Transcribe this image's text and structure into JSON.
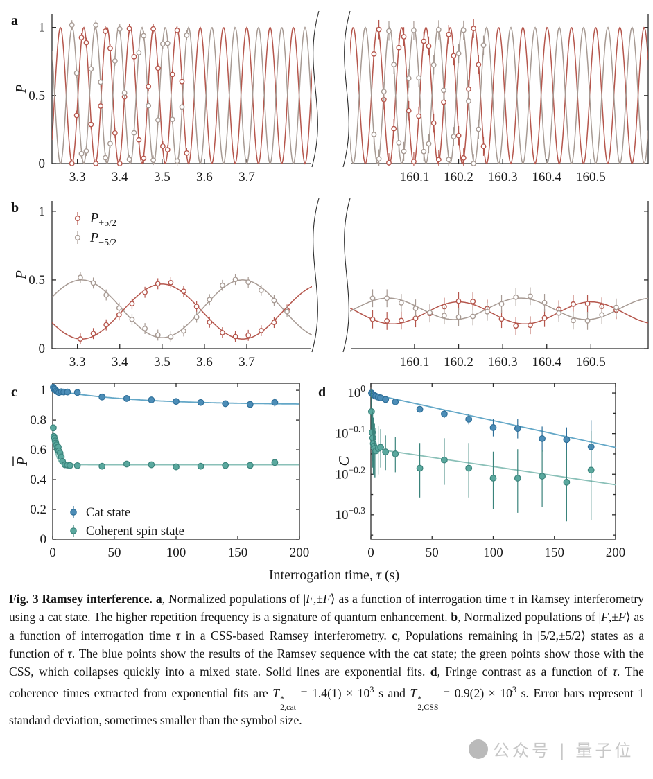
{
  "colors": {
    "red": "#b5564c",
    "gray": "#a79a93",
    "blue": "#4c8db7",
    "blue_edge": "#2e6f99",
    "blue_line": "#63a7c7",
    "teal": "#5aa89e",
    "teal_edge": "#3a837b",
    "teal_line": "#8ac0b8",
    "axis": "#2b2b2b"
  },
  "chart_data": {
    "shared_xlabel": "Interrogation time, τ (s)",
    "panel_a": {
      "type": "line",
      "label": "a",
      "ylabel": "P",
      "ylim": [
        0,
        1.1
      ],
      "yticks": [
        0,
        0.5,
        1
      ],
      "broken_axis": true,
      "segments": [
        {
          "xlim": [
            3.24,
            3.862
          ],
          "xticks": [
            3.3,
            3.4,
            3.5,
            3.6,
            3.7
          ],
          "series": [
            {
              "name": "P_plus_F",
              "color": "red",
              "fit": {
                "offset": 0.5,
                "amplitude": 0.5,
                "period": 0.055,
                "peak_at": 3.26
              }
            },
            {
              "name": "P_minus_F",
              "color": "gray",
              "fit": {
                "offset": 0.5,
                "amplitude": 0.5,
                "period": 0.055,
                "peak_at": 3.2875
              }
            }
          ],
          "data_points": {
            "x_start": 3.287,
            "x_end": 3.558,
            "x_step": 0.0113,
            "y_err": 0.035
          }
        },
        {
          "xlim": [
            159.946,
            160.63
          ],
          "xticks": [
            160.1,
            160.2,
            160.3,
            160.4,
            160.5
          ],
          "series": [
            {
              "name": "P_plus_F",
              "color": "red",
              "fit": {
                "offset": 0.5,
                "amplitude": 0.5,
                "period": 0.055,
                "peak_at": 160.016
              }
            },
            {
              "name": "P_minus_F",
              "color": "gray",
              "fit": {
                "offset": 0.5,
                "amplitude": 0.5,
                "period": 0.055,
                "peak_at": 160.0435
              }
            }
          ],
          "data_points": {
            "x_start": 160.008,
            "x_end": 160.253,
            "x_step": 0.0113,
            "y_err": 0.07
          }
        }
      ]
    },
    "panel_b": {
      "type": "line",
      "label": "b",
      "ylabel": "P",
      "ylim": [
        0,
        1.075
      ],
      "yticks": [
        0,
        0.5,
        1
      ],
      "broken_axis": true,
      "legend": [
        {
          "base": "P",
          "sub": "+5/2",
          "color": "red"
        },
        {
          "base": "P",
          "sub": "−5/2",
          "color": "gray"
        }
      ],
      "segments": [
        {
          "xlim": [
            3.24,
            3.862
          ],
          "xticks": [
            3.3,
            3.4,
            3.5,
            3.6,
            3.7
          ],
          "series": [
            {
              "name": "P_plus_5_2",
              "color": "red",
              "fit": {
                "offset": 0.27,
                "amplitude": 0.2,
                "period": 0.38,
                "peak_at": 3.5
              }
            },
            {
              "name": "P_minus_5_2",
              "color": "gray",
              "fit": {
                "offset": 0.29,
                "amplitude": 0.21,
                "period": 0.38,
                "peak_at": 3.31
              }
            }
          ],
          "data_points": {
            "x_start": 3.307,
            "x_end": 3.795,
            "x_step": 0.0305,
            "y_err": 0.04
          }
        },
        {
          "xlim": [
            159.946,
            160.63
          ],
          "xticks": [
            160.1,
            160.2,
            160.3,
            160.4,
            160.5
          ],
          "series": [
            {
              "name": "P_plus_5_2",
              "color": "red",
              "fit": {
                "offset": 0.26,
                "amplitude": 0.08,
                "period": 0.3,
                "peak_at": 160.2
              }
            },
            {
              "name": "P_minus_5_2",
              "color": "gray",
              "fit": {
                "offset": 0.29,
                "amplitude": 0.078,
                "period": 0.3,
                "peak_at": 160.04
              }
            }
          ],
          "data_points": {
            "x_start": 160.005,
            "x_end": 160.557,
            "x_step": 0.0325,
            "y_err": 0.065
          }
        }
      ]
    },
    "panel_c": {
      "type": "scatter",
      "label": "c",
      "ylabel": "P",
      "ylabel_overline": true,
      "xlim": [
        0,
        200
      ],
      "xticks": [
        0,
        50,
        100,
        150,
        200
      ],
      "ylim": [
        0,
        1.047
      ],
      "yticks": [
        0,
        0.2,
        0.4,
        0.6,
        0.8,
        1
      ],
      "legend": [
        {
          "label": "Cat state",
          "color": "blue"
        },
        {
          "label": "Coherent spin state",
          "color": "teal"
        }
      ],
      "series": [
        {
          "name": "Cat state",
          "color": "blue",
          "x": [
            0.5,
            1,
            2,
            3,
            4,
            5,
            7,
            9,
            12,
            20,
            40,
            60,
            80,
            100,
            120,
            140,
            160,
            180
          ],
          "y": [
            1.02,
            1.01,
            1.005,
            0.995,
            0.99,
            0.985,
            0.99,
            0.988,
            0.988,
            0.985,
            0.955,
            0.945,
            0.935,
            0.925,
            0.918,
            0.91,
            0.905,
            0.918
          ],
          "yerr": [
            0.012,
            0.01,
            0.008,
            0.008,
            0.008,
            0.008,
            0.006,
            0.006,
            0.006,
            0.006,
            0.007,
            0.007,
            0.008,
            0.008,
            0.012,
            0.015,
            0.015,
            0.028
          ],
          "fit": {
            "type": "exp",
            "baseline": 0.903,
            "amplitude": 0.097,
            "tau": 65
          }
        },
        {
          "name": "Coherent spin state",
          "color": "teal",
          "x": [
            0.5,
            1,
            1.5,
            2,
            2.5,
            3,
            3.5,
            4,
            4.5,
            5,
            6,
            7,
            8,
            10,
            12,
            14,
            20,
            40,
            60,
            80,
            100,
            120,
            140,
            160,
            180
          ],
          "y": [
            0.748,
            0.69,
            0.678,
            0.66,
            0.645,
            0.632,
            0.615,
            0.6,
            0.618,
            0.592,
            0.578,
            0.552,
            0.522,
            0.5,
            0.498,
            0.495,
            0.494,
            0.49,
            0.505,
            0.5,
            0.486,
            0.49,
            0.495,
            0.496,
            0.515
          ],
          "yerr": [
            0.02,
            0.015,
            0.012,
            0.012,
            0.012,
            0.012,
            0.012,
            0.012,
            0.012,
            0.012,
            0.012,
            0.012,
            0.012,
            0.01,
            0.01,
            0.01,
            0.01,
            0.01,
            0.012,
            0.01,
            0.012,
            0.012,
            0.012,
            0.012,
            0.02
          ],
          "fit": {
            "type": "exp",
            "baseline": 0.5,
            "amplitude": 0.25,
            "tau": 2.2
          }
        }
      ]
    },
    "panel_d": {
      "type": "scatter_log",
      "label": "d",
      "ylabel": "C",
      "xlim": [
        0,
        200
      ],
      "xticks": [
        0,
        50,
        100,
        150,
        200
      ],
      "ylim_log": [
        0.024,
        -0.36
      ],
      "yticks_log": [
        {
          "base": "10",
          "exponent": "0",
          "log": 0
        },
        {
          "base": "10",
          "exponent": "−0.1",
          "log": -0.1
        },
        {
          "base": "10",
          "exponent": "−0.2",
          "log": -0.2
        },
        {
          "base": "10",
          "exponent": "−0.3",
          "log": -0.3
        }
      ],
      "yticks_minor_log": [
        -0.05,
        -0.15,
        -0.25,
        -0.35
      ],
      "series": [
        {
          "name": "Cat state contrast",
          "color": "blue",
          "x": [
            0.5,
            1,
            2,
            3,
            4,
            6,
            8,
            12,
            20,
            40,
            60,
            80,
            100,
            120,
            140,
            160,
            180
          ],
          "y": [
            1.0,
            0.995,
            0.99,
            0.986,
            0.982,
            0.977,
            0.973,
            0.964,
            0.951,
            0.912,
            0.888,
            0.862,
            0.822,
            0.818,
            0.772,
            0.768,
            0.737
          ],
          "yerr": [
            0.008,
            0.008,
            0.008,
            0.008,
            0.008,
            0.008,
            0.01,
            0.01,
            0.012,
            0.015,
            0.02,
            0.025,
            0.04,
            0.045,
            0.055,
            0.055,
            0.12
          ],
          "fit": {
            "type": "log_linear",
            "log_intercept": -0.002,
            "log_slope": -0.00066
          }
        },
        {
          "name": "CSS contrast",
          "color": "teal",
          "x": [
            0.5,
            1,
            1.5,
            2,
            2.5,
            3,
            4,
            6,
            8,
            12,
            20,
            40,
            60,
            80,
            100,
            120,
            140,
            160,
            180
          ],
          "y": [
            0.9,
            0.8,
            0.775,
            0.75,
            0.74,
            0.73,
            0.72,
            0.73,
            0.735,
            0.716,
            0.708,
            0.653,
            0.684,
            0.653,
            0.617,
            0.617,
            0.624,
            0.603,
            0.646
          ],
          "yerr": [
            0.12,
            0.12,
            0.12,
            0.12,
            0.11,
            0.11,
            0.1,
            0.1,
            0.08,
            0.07,
            0.07,
            0.1,
            0.09,
            0.1,
            0.1,
            0.11,
            0.1,
            0.12,
            0.16
          ],
          "fit": {
            "type": "log_linear",
            "log_intercept": -0.136,
            "log_slope": -0.00045
          }
        }
      ]
    }
  },
  "caption": {
    "segments": [
      {
        "t": "Fig. 3  Ramsey interference. ",
        "b": true
      },
      {
        "t": "a",
        "b": true
      },
      {
        "t": ", Normalized populations of |"
      },
      {
        "t": "F",
        "i": true
      },
      {
        "t": ",±"
      },
      {
        "t": "F",
        "i": true
      },
      {
        "t": "⟩ as a function of interrogation time "
      },
      {
        "t": "τ",
        "i": true
      },
      {
        "t": " in Ramsey interferometry using a cat state. The higher repetition frequency is a signature of quantum enhancement. "
      },
      {
        "t": "b",
        "b": true
      },
      {
        "t": ", Normalized populations of |"
      },
      {
        "t": "F",
        "i": true
      },
      {
        "t": ",±"
      },
      {
        "t": "F",
        "i": true
      },
      {
        "t": "⟩ as a function of interrogation time "
      },
      {
        "t": "τ",
        "i": true
      },
      {
        "t": " in a CSS-based Ramsey interferometry. "
      },
      {
        "t": "c",
        "b": true
      },
      {
        "t": ", Populations remaining in |5/2,±5/2⟩ states as a function of "
      },
      {
        "t": "τ",
        "i": true
      },
      {
        "t": ". The blue points show the results of the Ramsey sequence with the cat state; the green points show those with the CSS, which collapses quickly into a mixed state. Solid lines are exponential fits. "
      },
      {
        "t": "d",
        "b": true
      },
      {
        "t": ", Fringe contrast as a function of "
      },
      {
        "t": "τ",
        "i": true
      },
      {
        "t": ". The coherence times extracted from exponential fits are "
      },
      {
        "t": "T",
        "i": true
      },
      {
        "stack": {
          "sup": "*",
          "sub": "2,cat"
        }
      },
      {
        "t": " = 1.4(1) × 10"
      },
      {
        "t": "3",
        "sup": true
      },
      {
        "t": " s and "
      },
      {
        "t": "T",
        "i": true
      },
      {
        "stack": {
          "sup": "*",
          "sub": "2,CSS"
        }
      },
      {
        "t": " = 0.9(2) × 10"
      },
      {
        "t": "3",
        "sup": true
      },
      {
        "t": " s. Error bars represent 1 standard deviation, sometimes smaller than the symbol size."
      }
    ]
  },
  "watermark": {
    "text": "公众号 | 量子位"
  }
}
